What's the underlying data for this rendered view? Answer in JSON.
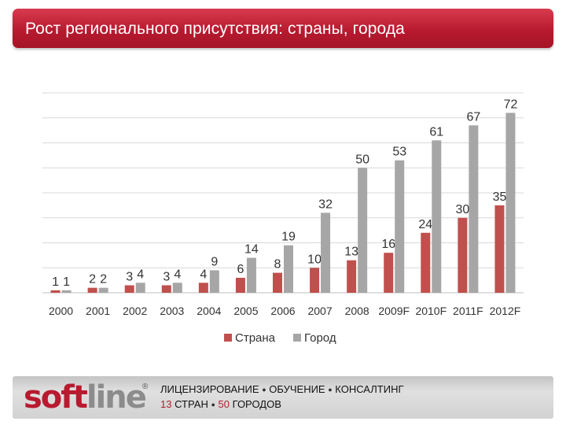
{
  "header": {
    "title": "Рост регионального присутствия: страны, города"
  },
  "chart_data": {
    "type": "bar",
    "title": "",
    "xlabel": "",
    "ylabel": "",
    "categories": [
      "2000",
      "2001",
      "2002",
      "2003",
      "2004",
      "2005",
      "2006",
      "2007",
      "2008",
      "2009F",
      "2010F",
      "2011F",
      "2012F"
    ],
    "series": [
      {
        "name": "Страна",
        "color": "#c0504d",
        "values": [
          1,
          2,
          3,
          3,
          4,
          6,
          8,
          10,
          13,
          16,
          24,
          30,
          35
        ]
      },
      {
        "name": "Город",
        "color": "#a6a6a6",
        "values": [
          1,
          2,
          4,
          4,
          9,
          14,
          19,
          32,
          50,
          53,
          61,
          67,
          72
        ]
      }
    ],
    "ylim": [
      0,
      80
    ],
    "grid": true,
    "legend": "bottom"
  },
  "footer": {
    "logo_part1": "soft",
    "logo_part2": "line",
    "registered_mark": "®",
    "line1": {
      "item1": "ЛИЦЕНЗИРОВАНИЕ",
      "item2": "ОБУЧЕНИЕ",
      "item3": "КОНСАЛТИНГ",
      "separator": "●"
    },
    "line2": {
      "countries_count": "13",
      "countries_label": "СТРАН",
      "cities_count": "50",
      "cities_label": "ГОРОДОВ",
      "separator": "●"
    }
  }
}
